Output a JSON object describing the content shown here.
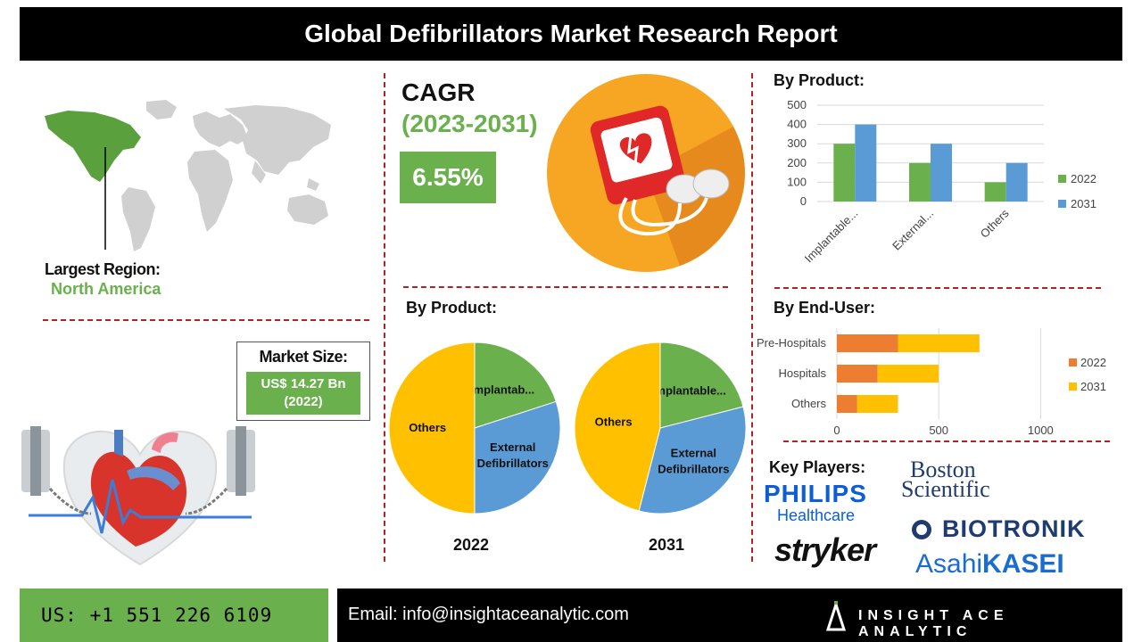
{
  "header": {
    "title": "Global Defibrillators Market Research Report"
  },
  "region": {
    "label": "Largest Region:",
    "value": "North America"
  },
  "cagr": {
    "title": "CAGR",
    "years": "(2023-2031)",
    "value": "6.55%"
  },
  "market_size": {
    "label": "Market Size:",
    "value_line1": "US$ 14.27 Bn",
    "value_line2": "(2022)"
  },
  "key_players": {
    "label": "Key Players:",
    "philips_1": "PHILIPS",
    "philips_2": "Healthcare",
    "boston_1": "Boston",
    "boston_2": "Scientific",
    "stryker": "stryker",
    "biotronik": "BIOTRONIK",
    "asahi_1": "Asahi",
    "asahi_2": "KASEI"
  },
  "footer": {
    "phone": "US: +1 551 226 6109",
    "email": "Email: info@insightaceanalytic.com",
    "brand": "INSIGHT ACE ANALYTIC"
  },
  "colors": {
    "green": "#6ab04c",
    "blue": "#5b9bd5",
    "orange": "#ed7d31",
    "yellow": "#ffc000",
    "dash": "#b22222"
  },
  "chart_data": [
    {
      "id": "product_bar",
      "type": "bar",
      "title": "By Product:",
      "categories": [
        "Implantable...",
        "External...",
        "Others"
      ],
      "series": [
        {
          "name": "2022",
          "values": [
            300,
            200,
            100
          ]
        },
        {
          "name": "2031",
          "values": [
            400,
            300,
            200
          ]
        }
      ],
      "ylim": [
        0,
        500
      ],
      "yticks": [
        "0",
        "100",
        "200",
        "300",
        "400",
        "500"
      ],
      "grid": true,
      "legend": "right"
    },
    {
      "id": "enduser_bar",
      "type": "bar",
      "orientation": "horizontal",
      "stacked": true,
      "title": "By End-User:",
      "categories": [
        "Pre-Hospitals",
        "Hospitals",
        "Others"
      ],
      "series": [
        {
          "name": "2022",
          "values": [
            300,
            200,
            100
          ]
        },
        {
          "name": "2031",
          "values": [
            400,
            300,
            200
          ]
        }
      ],
      "xlim": [
        0,
        1200
      ],
      "xticks": [
        "0",
        "500",
        "1000"
      ],
      "grid": true,
      "legend": "right"
    },
    {
      "id": "pie_2022",
      "type": "pie",
      "section_title": "By Product:",
      "label": "2022",
      "slices": [
        {
          "name": "Implantab...",
          "value": 20
        },
        {
          "name": "External Defibrillators",
          "value": 30
        },
        {
          "name": "Others",
          "value": 50
        }
      ]
    },
    {
      "id": "pie_2031",
      "type": "pie",
      "label": "2031",
      "slices": [
        {
          "name": "Implantable...",
          "value": 21
        },
        {
          "name": "External Defibrillators",
          "value": 33
        },
        {
          "name": "Others",
          "value": 46
        }
      ]
    }
  ]
}
